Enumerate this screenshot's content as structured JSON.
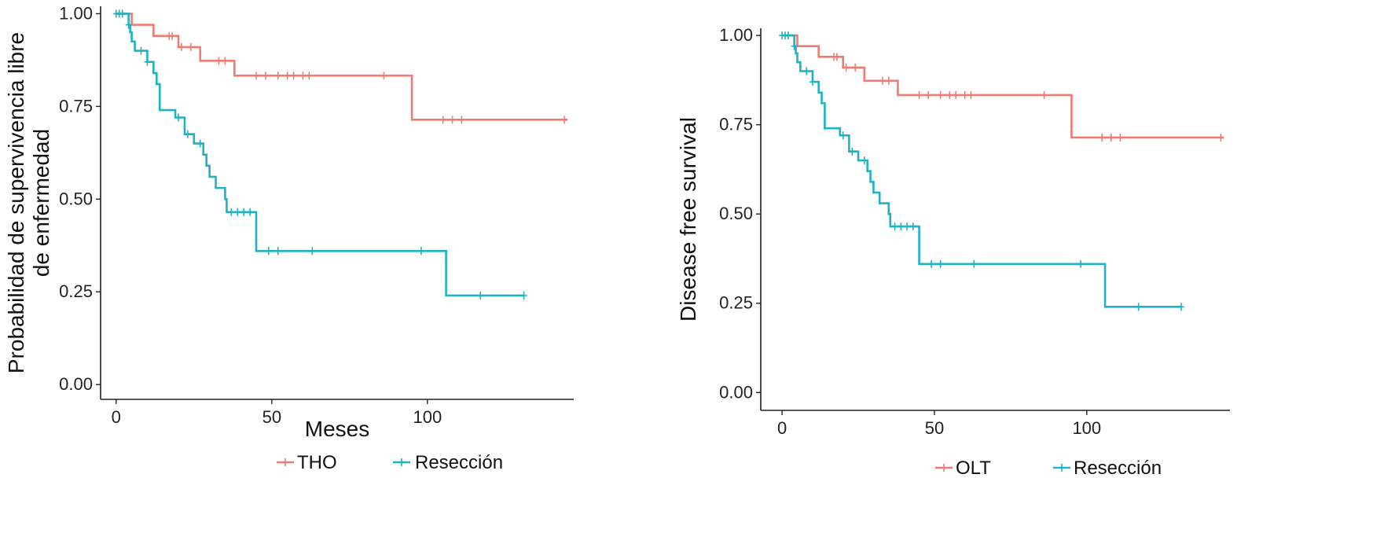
{
  "chart_data": [
    {
      "type": "line",
      "title": "",
      "xlabel": "Meses",
      "ylabel_lines": [
        "Probabilidad de supervivencia libre",
        "de enfermedad"
      ],
      "xlim": [
        -5,
        147
      ],
      "ylim": [
        -0.04,
        1.02
      ],
      "xticks": [
        0,
        50,
        100
      ],
      "xtick_labels": [
        "0",
        "50",
        "100"
      ],
      "yticks": [
        0,
        0.25,
        0.5,
        0.75,
        1.0
      ],
      "ytick_labels": [
        "0.00",
        "0.25",
        "0.50",
        "0.75",
        "1.00"
      ],
      "grid": false,
      "legend_position": "bottom",
      "series": [
        {
          "name": "THO",
          "color": "#F07B72",
          "steps": [
            [
              0,
              1.0
            ],
            [
              5,
              0.97
            ],
            [
              12,
              0.94
            ],
            [
              20,
              0.91
            ],
            [
              27,
              0.873
            ],
            [
              38,
              0.833
            ],
            [
              95,
              0.714
            ],
            [
              145,
              0.714
            ]
          ],
          "censors": [
            [
              17,
              0.94
            ],
            [
              18,
              0.94
            ],
            [
              21,
              0.91
            ],
            [
              24,
              0.91
            ],
            [
              33,
              0.873
            ],
            [
              35,
              0.873
            ],
            [
              45,
              0.833
            ],
            [
              48,
              0.833
            ],
            [
              52,
              0.833
            ],
            [
              55,
              0.833
            ],
            [
              57,
              0.833
            ],
            [
              60,
              0.833
            ],
            [
              62,
              0.833
            ],
            [
              86,
              0.833
            ],
            [
              105,
              0.714
            ],
            [
              108,
              0.714
            ],
            [
              111,
              0.714
            ],
            [
              144,
              0.714
            ]
          ]
        },
        {
          "name": "Resección",
          "color": "#1FB2C5",
          "steps": [
            [
              0,
              1.0
            ],
            [
              4,
              0.97
            ],
            [
              4.5,
              0.95
            ],
            [
              5,
              0.925
            ],
            [
              6,
              0.9
            ],
            [
              10,
              0.87
            ],
            [
              12,
              0.84
            ],
            [
              13,
              0.81
            ],
            [
              14,
              0.74
            ],
            [
              19,
              0.72
            ],
            [
              22,
              0.675
            ],
            [
              25,
              0.65
            ],
            [
              28,
              0.62
            ],
            [
              29,
              0.59
            ],
            [
              30,
              0.56
            ],
            [
              32,
              0.53
            ],
            [
              35,
              0.5
            ],
            [
              35.5,
              0.465
            ],
            [
              45,
              0.36
            ],
            [
              106,
              0.24
            ],
            [
              131,
              0.24
            ]
          ],
          "censors": [
            [
              0,
              1.0
            ],
            [
              1,
              1.0
            ],
            [
              2,
              1.0
            ],
            [
              4,
              0.97
            ],
            [
              8,
              0.9
            ],
            [
              10,
              0.87
            ],
            [
              20,
              0.72
            ],
            [
              23,
              0.675
            ],
            [
              27,
              0.65
            ],
            [
              37,
              0.465
            ],
            [
              39,
              0.465
            ],
            [
              41,
              0.465
            ],
            [
              43,
              0.465
            ],
            [
              49,
              0.36
            ],
            [
              52,
              0.36
            ],
            [
              63,
              0.36
            ],
            [
              98,
              0.36
            ],
            [
              117,
              0.24
            ],
            [
              131,
              0.24
            ]
          ]
        }
      ]
    },
    {
      "type": "line",
      "title": "",
      "xlabel": "",
      "ylabel_lines": [
        "Disease free survival"
      ],
      "xlim": [
        -7,
        147
      ],
      "ylim": [
        -0.05,
        1.02
      ],
      "xticks": [
        0,
        50,
        100
      ],
      "xtick_labels": [
        "0",
        "50",
        "100"
      ],
      "yticks": [
        0,
        0.25,
        0.5,
        0.75,
        1.0
      ],
      "ytick_labels": [
        "0.00",
        "0.25",
        "0.50",
        "0.75",
        "1.00"
      ],
      "grid": false,
      "legend_position": "bottom",
      "series": [
        {
          "name": "OLT",
          "color": "#F07B72",
          "steps": [
            [
              0,
              1.0
            ],
            [
              5,
              0.97
            ],
            [
              12,
              0.94
            ],
            [
              20,
              0.91
            ],
            [
              27,
              0.873
            ],
            [
              38,
              0.833
            ],
            [
              95,
              0.714
            ],
            [
              145,
              0.714
            ]
          ],
          "censors": [
            [
              17,
              0.94
            ],
            [
              18,
              0.94
            ],
            [
              21,
              0.91
            ],
            [
              24,
              0.91
            ],
            [
              33,
              0.873
            ],
            [
              35,
              0.873
            ],
            [
              45,
              0.833
            ],
            [
              48,
              0.833
            ],
            [
              52,
              0.833
            ],
            [
              55,
              0.833
            ],
            [
              57,
              0.833
            ],
            [
              60,
              0.833
            ],
            [
              62,
              0.833
            ],
            [
              86,
              0.833
            ],
            [
              105,
              0.714
            ],
            [
              108,
              0.714
            ],
            [
              111,
              0.714
            ],
            [
              144,
              0.714
            ]
          ]
        },
        {
          "name": "Resección",
          "color": "#1FB2C5",
          "steps": [
            [
              0,
              1.0
            ],
            [
              4,
              0.97
            ],
            [
              4.5,
              0.95
            ],
            [
              5,
              0.925
            ],
            [
              6,
              0.9
            ],
            [
              10,
              0.87
            ],
            [
              12,
              0.84
            ],
            [
              13,
              0.81
            ],
            [
              14,
              0.74
            ],
            [
              19,
              0.72
            ],
            [
              22,
              0.675
            ],
            [
              25,
              0.65
            ],
            [
              28,
              0.62
            ],
            [
              29,
              0.59
            ],
            [
              30,
              0.56
            ],
            [
              32,
              0.53
            ],
            [
              35,
              0.5
            ],
            [
              35.5,
              0.465
            ],
            [
              45,
              0.36
            ],
            [
              106,
              0.24
            ],
            [
              131,
              0.24
            ]
          ],
          "censors": [
            [
              0,
              1.0
            ],
            [
              1,
              1.0
            ],
            [
              2,
              1.0
            ],
            [
              4,
              0.97
            ],
            [
              8,
              0.9
            ],
            [
              10,
              0.87
            ],
            [
              20,
              0.72
            ],
            [
              23,
              0.675
            ],
            [
              27,
              0.65
            ],
            [
              37,
              0.465
            ],
            [
              39,
              0.465
            ],
            [
              41,
              0.465
            ],
            [
              43,
              0.465
            ],
            [
              49,
              0.36
            ],
            [
              52,
              0.36
            ],
            [
              63,
              0.36
            ],
            [
              98,
              0.36
            ],
            [
              117,
              0.24
            ],
            [
              131,
              0.24
            ]
          ]
        }
      ]
    }
  ]
}
